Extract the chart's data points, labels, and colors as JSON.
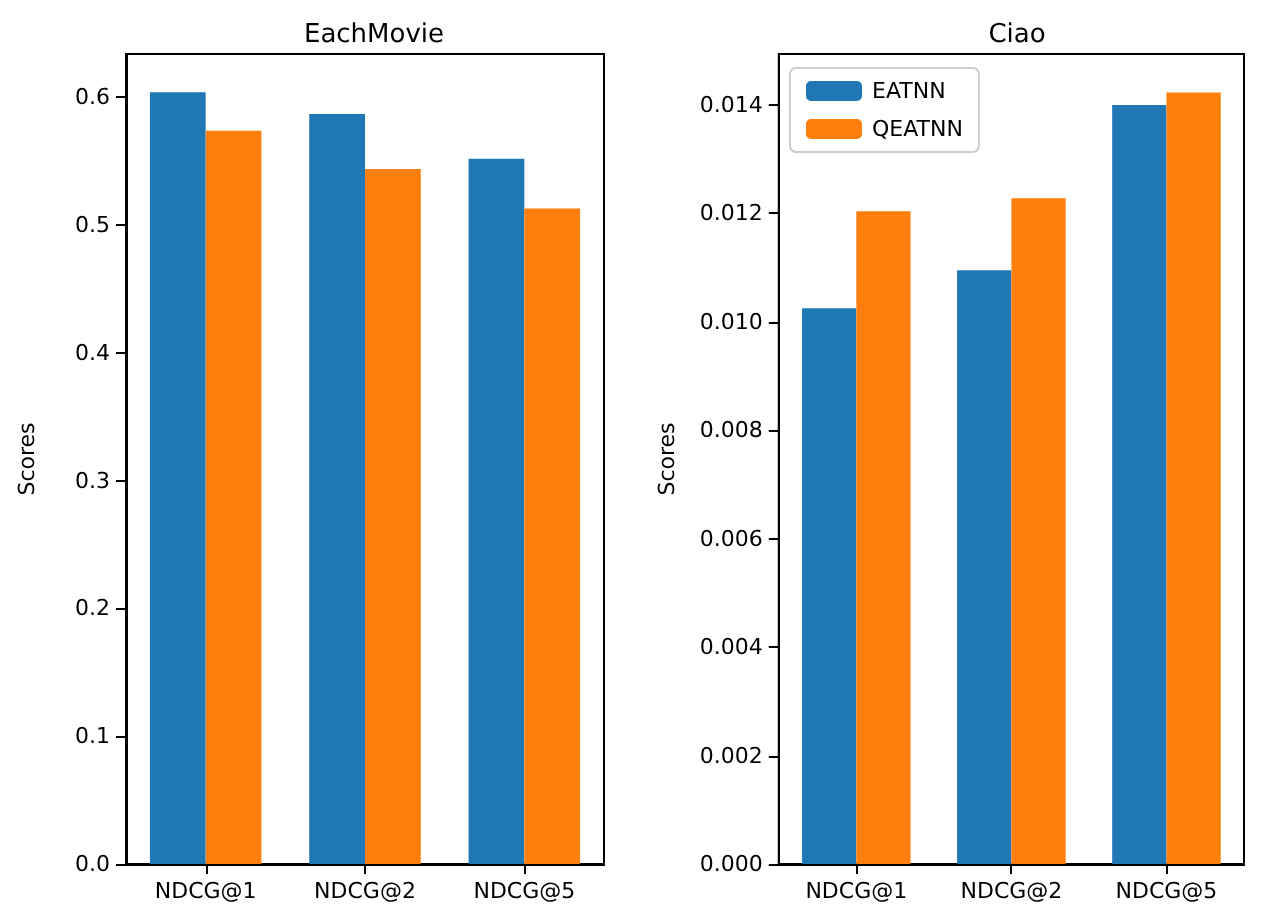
{
  "chart_data": [
    {
      "type": "bar",
      "title": "EachMovie",
      "ylabel": "Scores",
      "categories": [
        "NDCG@1",
        "NDCG@2",
        "NDCG@5"
      ],
      "series": [
        {
          "color": "#1f77b4",
          "values": [
            0.604,
            0.587,
            0.552
          ]
        },
        {
          "color": "#ff7f0e",
          "values": [
            0.574,
            0.544,
            0.513
          ]
        }
      ],
      "ylim": [
        0,
        0.634
      ],
      "yticks": [
        {
          "value": 0,
          "label": "0.0"
        },
        {
          "value": 0.1,
          "label": "0.1"
        },
        {
          "value": 0.2,
          "label": "0.2"
        },
        {
          "value": 0.3,
          "label": "0.3"
        },
        {
          "value": 0.4,
          "label": "0.4"
        },
        {
          "value": 0.5,
          "label": "0.5"
        },
        {
          "value": 0.6,
          "label": "0.6"
        }
      ],
      "grid": false,
      "legend": false
    },
    {
      "type": "bar",
      "title": "Ciao",
      "ylabel": "Scores",
      "categories": [
        "NDCG@1",
        "NDCG@2",
        "NDCG@5"
      ],
      "series": [
        {
          "name": "EATNN",
          "color": "#1f77b4",
          "values": [
            0.01025,
            0.01095,
            0.014
          ]
        },
        {
          "name": "QEATNN",
          "color": "#ff7f0e",
          "values": [
            0.01204,
            0.01228,
            0.01423
          ]
        }
      ],
      "ylim": [
        0,
        0.01494
      ],
      "yticks": [
        {
          "value": 0,
          "label": "0.000"
        },
        {
          "value": 0.002,
          "label": "0.002"
        },
        {
          "value": 0.004,
          "label": "0.004"
        },
        {
          "value": 0.006,
          "label": "0.006"
        },
        {
          "value": 0.008,
          "label": "0.008"
        },
        {
          "value": 0.01,
          "label": "0.010"
        },
        {
          "value": 0.012,
          "label": "0.012"
        },
        {
          "value": 0.014,
          "label": "0.014"
        }
      ],
      "grid": false,
      "legend": "top left"
    }
  ]
}
